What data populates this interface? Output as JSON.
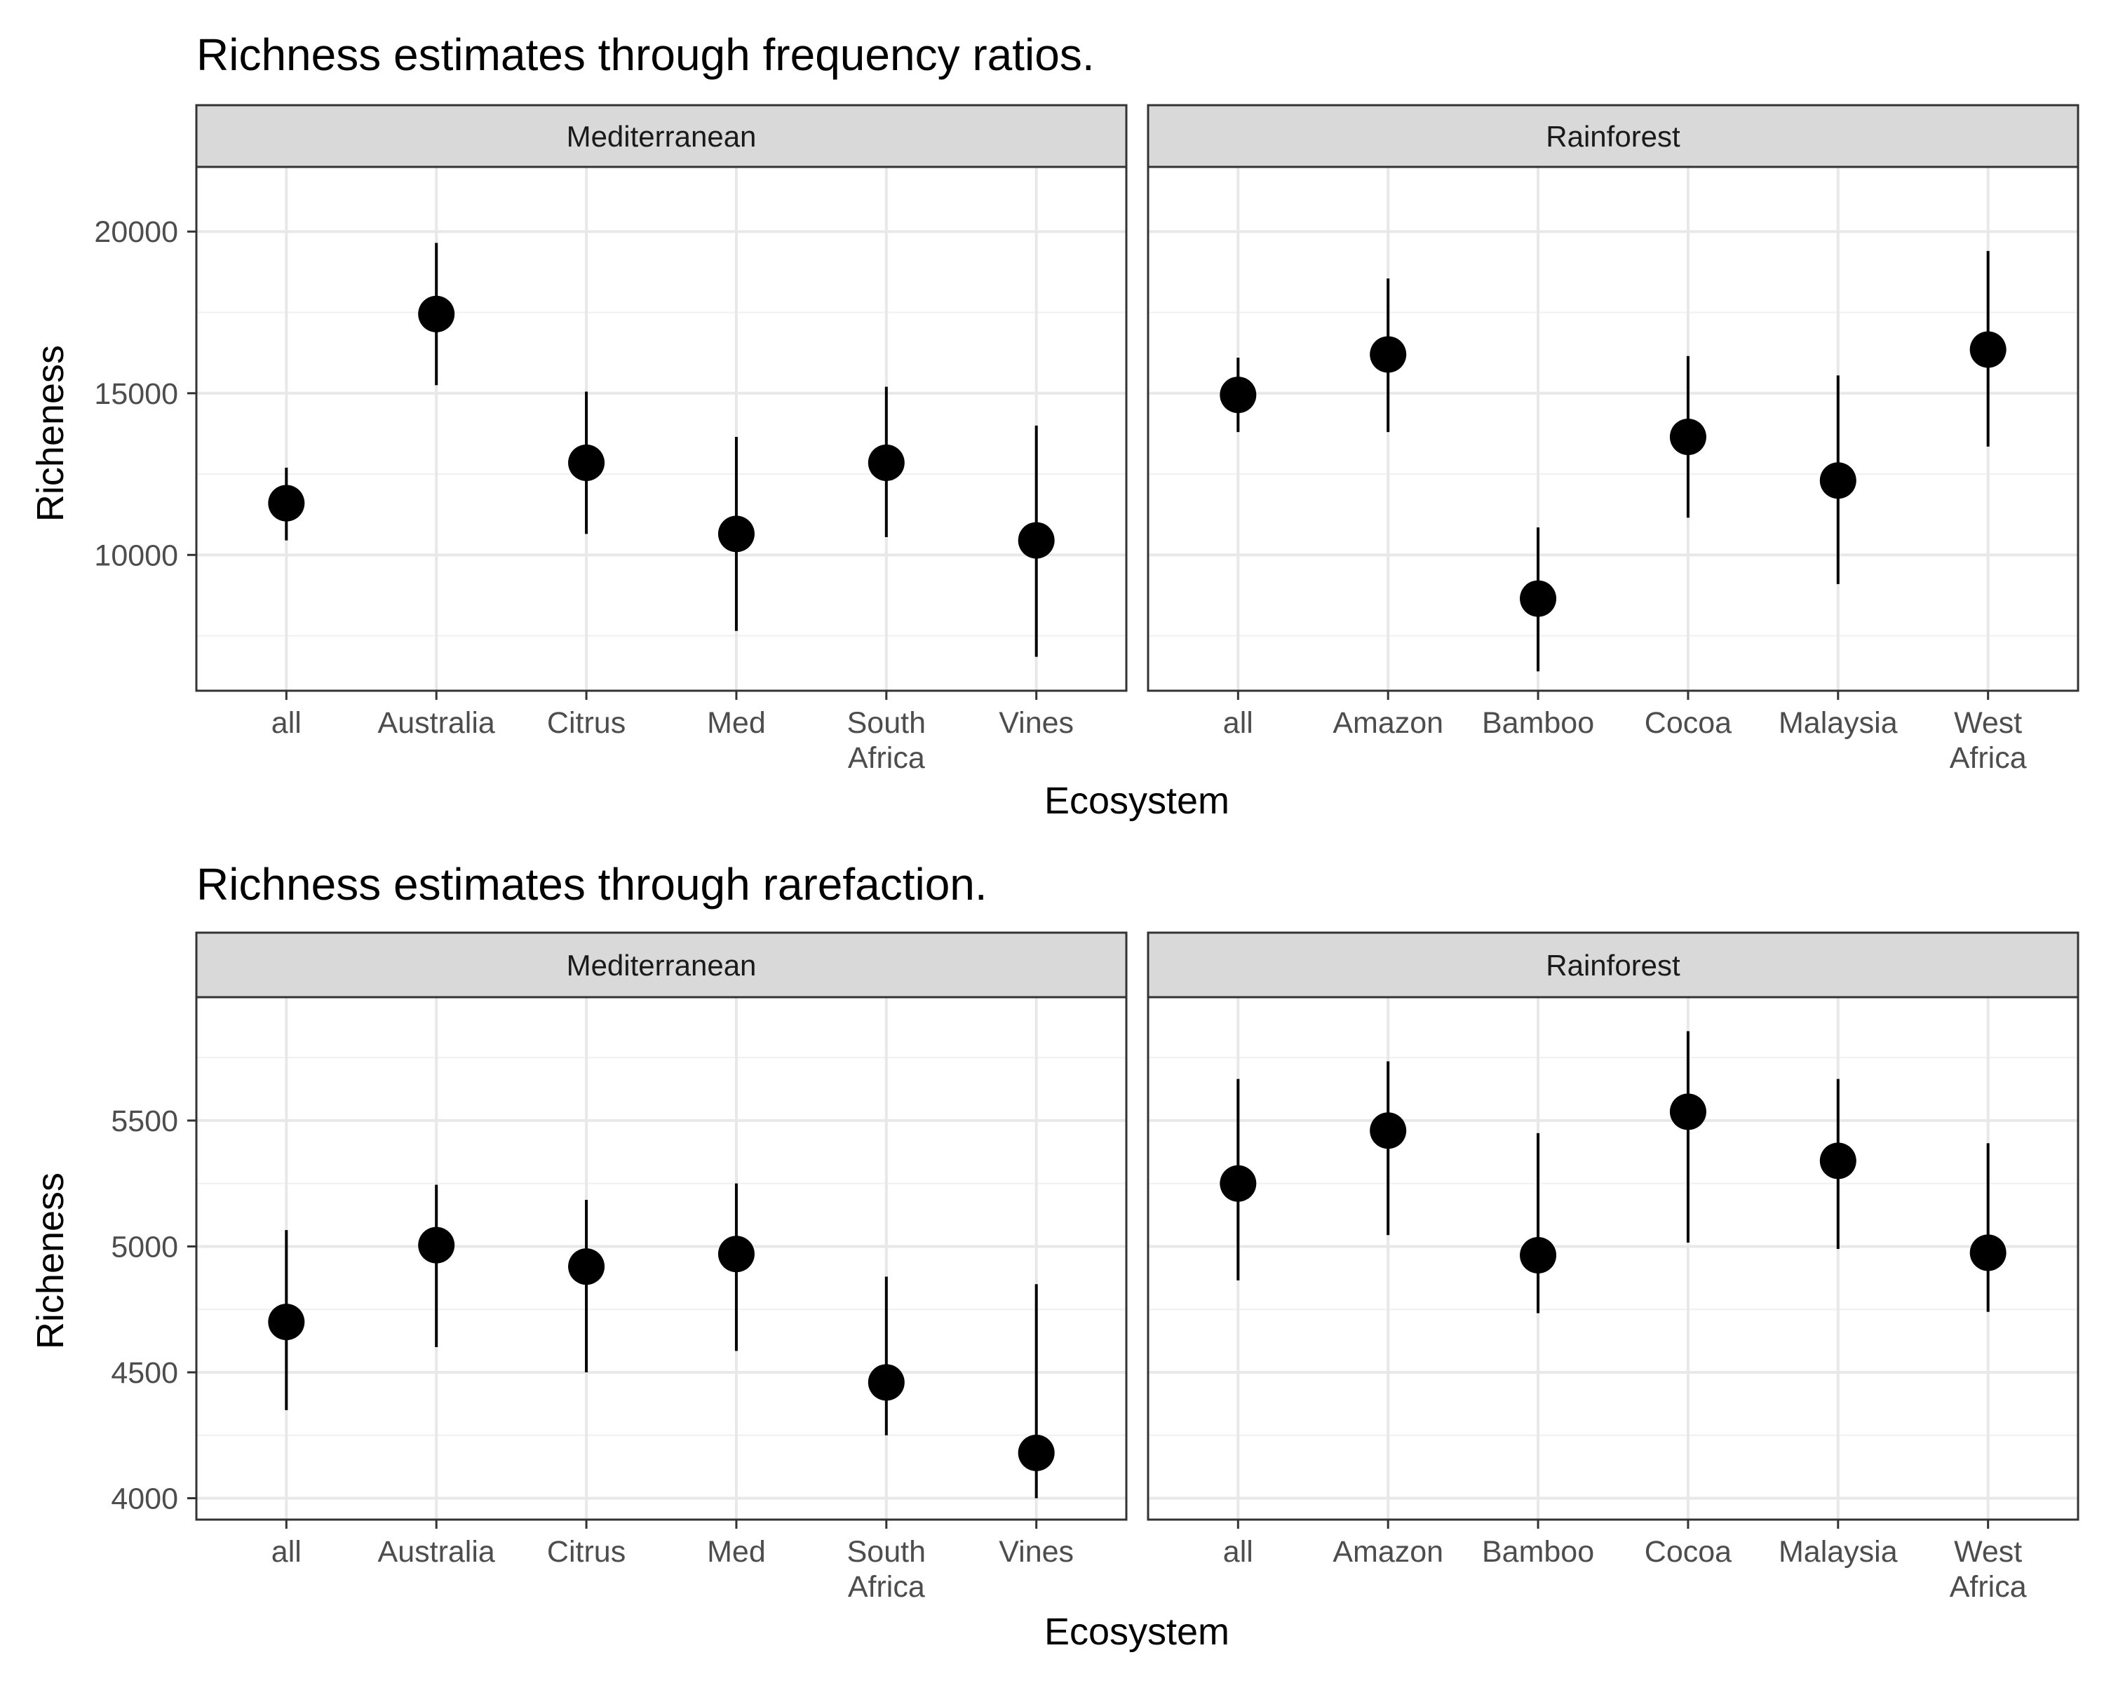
{
  "chart_data": [
    {
      "type": "scatter",
      "style": "point-range",
      "title": "Richness estimates through frequency ratios.",
      "xlabel": "Ecosystem",
      "ylabel": "Richeness",
      "ylim": [
        5800,
        22000
      ],
      "yticks": [
        10000,
        15000,
        20000
      ],
      "y_tick_labels": [
        "10000",
        "15000",
        "20000"
      ],
      "grid": true,
      "panels": [
        {
          "name": "Mediterranean",
          "categories": [
            "all",
            "Australia",
            "Citrus",
            "Med",
            "South Africa",
            "Vines"
          ],
          "category_lines": [
            [
              "all"
            ],
            [
              "Australia"
            ],
            [
              "Citrus"
            ],
            [
              "Med"
            ],
            [
              "South",
              "Africa"
            ],
            [
              "Vines"
            ]
          ],
          "values": [
            11600,
            17450,
            12850,
            10650,
            12850,
            10450
          ],
          "lower": [
            10450,
            15250,
            10650,
            7650,
            10550,
            6850
          ],
          "upper": [
            12700,
            19650,
            15050,
            13650,
            15200,
            14000
          ]
        },
        {
          "name": "Rainforest",
          "categories": [
            "all",
            "Amazon",
            "Bamboo",
            "Cocoa",
            "Malaysia",
            "West Africa"
          ],
          "category_lines": [
            [
              "all"
            ],
            [
              "Amazon"
            ],
            [
              "Bamboo"
            ],
            [
              "Cocoa"
            ],
            [
              "Malaysia"
            ],
            [
              "West",
              "Africa"
            ]
          ],
          "values": [
            14950,
            16200,
            8650,
            13650,
            12300,
            16350
          ],
          "lower": [
            13800,
            13800,
            6400,
            11150,
            9100,
            13350
          ],
          "upper": [
            16100,
            18550,
            10850,
            16150,
            15550,
            19400
          ]
        }
      ]
    },
    {
      "type": "scatter",
      "style": "point-range",
      "title": "Richness estimates through rarefaction.",
      "xlabel": "Ecosystem",
      "ylabel": "Richeness",
      "ylim": [
        3915,
        5990
      ],
      "yticks": [
        4000,
        4500,
        5000,
        5500
      ],
      "y_tick_labels": [
        "4000",
        "4500",
        "5000",
        "5500"
      ],
      "grid": true,
      "panels": [
        {
          "name": "Mediterranean",
          "categories": [
            "all",
            "Australia",
            "Citrus",
            "Med",
            "South Africa",
            "Vines"
          ],
          "category_lines": [
            [
              "all"
            ],
            [
              "Australia"
            ],
            [
              "Citrus"
            ],
            [
              "Med"
            ],
            [
              "South",
              "Africa"
            ],
            [
              "Vines"
            ]
          ],
          "values": [
            4700,
            5005,
            4920,
            4970,
            4460,
            4180
          ],
          "lower": [
            4350,
            4600,
            4500,
            4585,
            4250,
            4000
          ],
          "upper": [
            5065,
            5245,
            5185,
            5250,
            4880,
            4850
          ]
        },
        {
          "name": "Rainforest",
          "categories": [
            "all",
            "Amazon",
            "Bamboo",
            "Cocoa",
            "Malaysia",
            "West Africa"
          ],
          "category_lines": [
            [
              "all"
            ],
            [
              "Amazon"
            ],
            [
              "Bamboo"
            ],
            [
              "Cocoa"
            ],
            [
              "Malaysia"
            ],
            [
              "West",
              "Africa"
            ]
          ],
          "values": [
            5250,
            5460,
            4965,
            5535,
            5340,
            4975
          ],
          "lower": [
            4865,
            5045,
            4735,
            5015,
            4990,
            4740
          ],
          "upper": [
            5665,
            5735,
            5450,
            5855,
            5665,
            5410
          ]
        }
      ]
    }
  ]
}
